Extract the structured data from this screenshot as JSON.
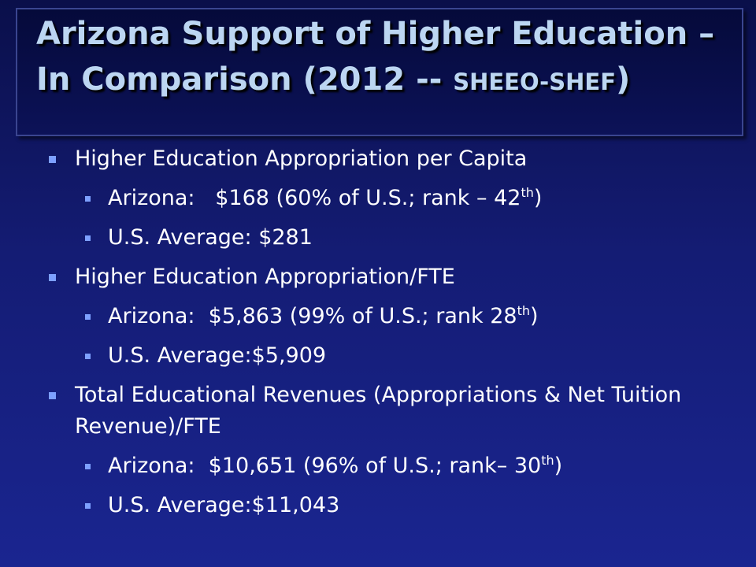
{
  "title": {
    "main": "Arizona Support of Higher Education – In Comparison (2012 -- ",
    "small": "SHEEO-SHEF",
    "end": ")"
  },
  "bullets": [
    {
      "text": "Higher Education Appropriation per Capita",
      "items": [
        {
          "text": "Arizona:   $168 (60% of U.S.; rank – 42",
          "sup": "th",
          "end": ")"
        },
        {
          "text": "U.S. Average: $281"
        }
      ]
    },
    {
      "text": "Higher Education Appropriation/FTE",
      "items": [
        {
          "text": "Arizona:  $5,863 (99% of U.S.; rank 28",
          "sup": "th",
          "end": ")"
        },
        {
          "text": "U.S. Average:$5,909"
        }
      ]
    },
    {
      "text": "Total Educational Revenues (Appropriations & Net Tuition Revenue)/FTE",
      "items": [
        {
          "text": "Arizona:  $10,651 (96% of U.S.; rank– 30",
          "sup": "th",
          "end": ")"
        },
        {
          "text": "U.S. Average:$11,043"
        }
      ]
    }
  ]
}
